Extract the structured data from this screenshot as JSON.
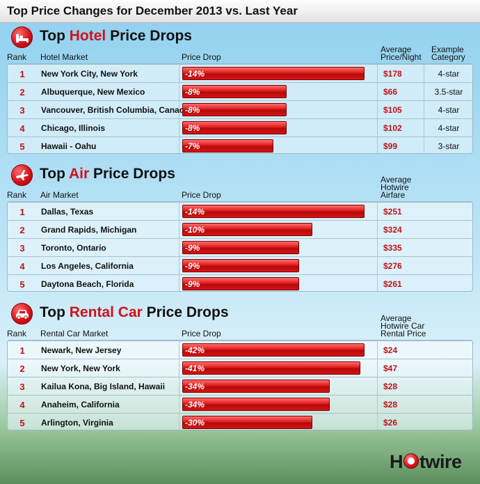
{
  "header": {
    "title": "Top Price Changes for December 2013 vs. Last Year"
  },
  "logo": {
    "text": "Hotwire",
    "brand_color": "#d3111a"
  },
  "colors": {
    "accent": "#d3111a",
    "bar": "#d51414",
    "rank": "#c5111a"
  },
  "chart_data": [
    {
      "type": "bar",
      "title": "Top Hotel Price Drops",
      "title_parts": {
        "pre": "Top ",
        "accent": "Hotel",
        "post": " Price Drops"
      },
      "icon": "bed-icon",
      "columns": {
        "rank": "Rank",
        "market": "Hotel Market",
        "drop": "Price Drop",
        "price_line1": "Average",
        "price_line2": "Price/Night",
        "price_line3": "",
        "cat_line1": "Example",
        "cat_line2": "Category"
      },
      "rows": [
        {
          "rank": "1",
          "market": "New York City, New York",
          "drop_label": "-14%",
          "drop": -14,
          "price": "$178",
          "category": "4-star"
        },
        {
          "rank": "2",
          "market": "Albuquerque, New Mexico",
          "drop_label": "-8%",
          "drop": -8,
          "price": "$66",
          "category": "3.5-star"
        },
        {
          "rank": "3",
          "market": "Vancouver, British Columbia, Canada",
          "drop_label": "-8%",
          "drop": -8,
          "price": "$105",
          "category": "4-star"
        },
        {
          "rank": "4",
          "market": "Chicago, Illinois",
          "drop_label": "-8%",
          "drop": -8,
          "price": "$102",
          "category": "4-star"
        },
        {
          "rank": "5",
          "market": "Hawaii - Oahu",
          "drop_label": "-7%",
          "drop": -7,
          "price": "$99",
          "category": "3-star"
        }
      ]
    },
    {
      "type": "bar",
      "title": "Top Air Price Drops",
      "title_parts": {
        "pre": "Top ",
        "accent": "Air",
        "post": " Price Drops"
      },
      "icon": "airplane-icon",
      "columns": {
        "rank": "Rank",
        "market": "Air Market",
        "drop": "Price Drop",
        "price_line1": "Average",
        "price_line2": "Hotwire",
        "price_line3": "Airfare"
      },
      "rows": [
        {
          "rank": "1",
          "market": "Dallas, Texas",
          "drop_label": "-14%",
          "drop": -14,
          "price": "$251"
        },
        {
          "rank": "2",
          "market": "Grand Rapids, Michigan",
          "drop_label": "-10%",
          "drop": -10,
          "price": "$324"
        },
        {
          "rank": "3",
          "market": "Toronto, Ontario",
          "drop_label": "-9%",
          "drop": -9,
          "price": "$335"
        },
        {
          "rank": "4",
          "market": "Los Angeles, California",
          "drop_label": "-9%",
          "drop": -9,
          "price": "$276"
        },
        {
          "rank": "5",
          "market": "Daytona Beach, Florida",
          "drop_label": "-9%",
          "drop": -9,
          "price": "$261"
        }
      ]
    },
    {
      "type": "bar",
      "title": "Top Rental Car Price Drops",
      "title_parts": {
        "pre": "Top ",
        "accent": "Rental Car",
        "post": " Price Drops"
      },
      "icon": "car-icon",
      "columns": {
        "rank": "Rank",
        "market": "Rental Car Market",
        "drop": "Price Drop",
        "price_line1": "Average",
        "price_line2": "Hotwire Car",
        "price_line3": "Rental Price"
      },
      "rows": [
        {
          "rank": "1",
          "market": "Newark, New Jersey",
          "drop_label": "-42%",
          "drop": -42,
          "price": "$24"
        },
        {
          "rank": "2",
          "market": "New York, New York",
          "drop_label": "-41%",
          "drop": -41,
          "price": "$47"
        },
        {
          "rank": "3",
          "market": "Kailua Kona, Big Island, Hawaii",
          "drop_label": "-34%",
          "drop": -34,
          "price": "$28"
        },
        {
          "rank": "4",
          "market": "Anaheim, California",
          "drop_label": "-34%",
          "drop": -34,
          "price": "$28"
        },
        {
          "rank": "5",
          "market": "Arlington, Virginia",
          "drop_label": "-30%",
          "drop": -30,
          "price": "$26"
        }
      ]
    }
  ]
}
